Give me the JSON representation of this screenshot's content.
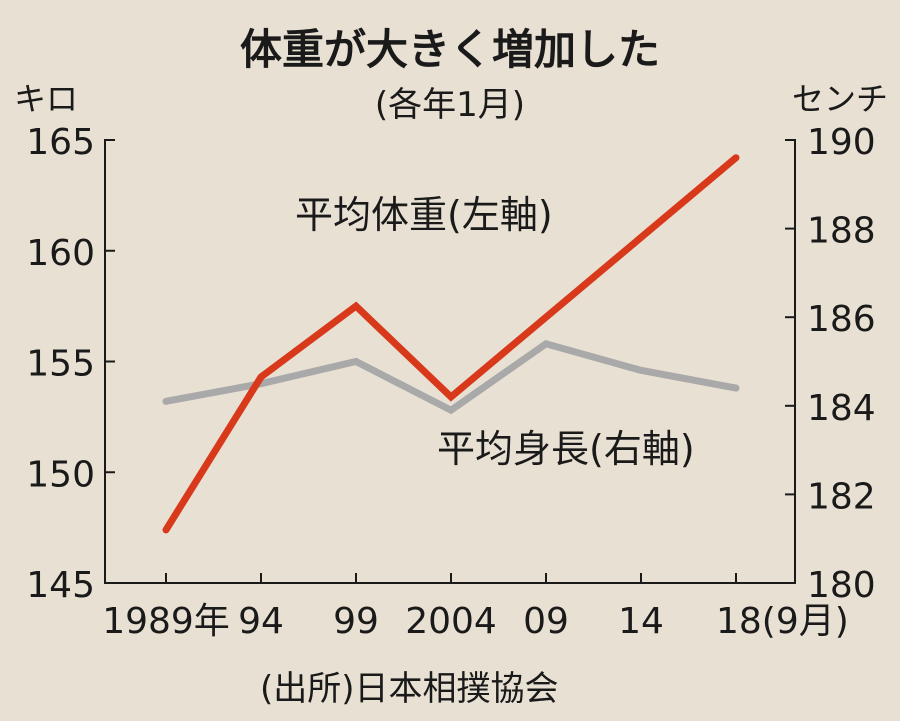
{
  "chart_data": {
    "type": "line",
    "title": "体重が大きく増加した",
    "subtitle": "(各年1月)",
    "source": "(出所)日本相撲協会",
    "x": [
      "1989年",
      "94",
      "99",
      "2004",
      "09",
      "14",
      "18(9月)"
    ],
    "y_left": {
      "label": "キロ",
      "ticks": [
        "145",
        "150",
        "155",
        "160",
        "165"
      ],
      "range": [
        145,
        165
      ]
    },
    "y_right": {
      "label": "センチ",
      "ticks": [
        "180",
        "182",
        "184",
        "186",
        "188",
        "190"
      ],
      "range": [
        180,
        190
      ]
    },
    "grid": false,
    "series": [
      {
        "name": "平均体重(左軸)",
        "axis": "left",
        "color": "#d9391b",
        "values": [
          147.4,
          154.3,
          157.5,
          153.4,
          157.0,
          160.6,
          164.2
        ]
      },
      {
        "name": "平均身長(右軸)",
        "axis": "right",
        "color": "#a9a9a9",
        "values": [
          184.1,
          184.5,
          185.0,
          183.9,
          185.4,
          184.8,
          184.4
        ]
      }
    ]
  }
}
